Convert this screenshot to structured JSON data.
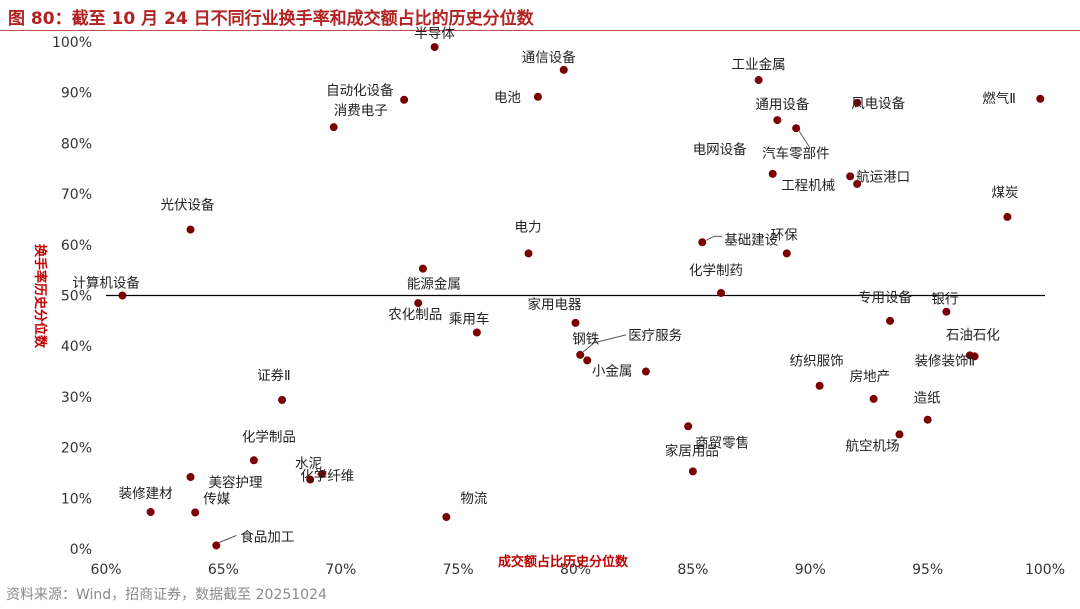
{
  "figure": {
    "title": "图 80：截至 10 月 24 日不同行业换手率和成交额占比的历史分位数",
    "source": "资料来源：Wind，招商证券，数据截至 20251024"
  },
  "colors": {
    "point": "#7b0000",
    "axis_title": "#c00000",
    "title": "#b22222",
    "axis_line": "#000000"
  },
  "chart_data": {
    "type": "scatter",
    "title": "截至 10 月 24 日不同行业换手率和成交额占比的历史分位数",
    "xlabel": "成交额占比历史分位数",
    "ylabel": "换手率历史分位数",
    "xlim": [
      60,
      100
    ],
    "ylim": [
      0,
      100
    ],
    "x_ticks": [
      60,
      65,
      70,
      75,
      80,
      85,
      90,
      95,
      100
    ],
    "y_ticks": [
      0,
      10,
      20,
      30,
      40,
      50,
      60,
      70,
      80,
      90,
      100
    ],
    "tick_suffix": "%",
    "grid": false,
    "points": [
      {
        "name": "半导体",
        "x": 74.0,
        "y": 99.0
      },
      {
        "name": "通信设备",
        "x": 79.5,
        "y": 94.5
      },
      {
        "name": "工业金属",
        "x": 87.8,
        "y": 92.5
      },
      {
        "name": "电池",
        "x": 78.4,
        "y": 89.2
      },
      {
        "name": "自动化设备",
        "x": 72.7,
        "y": 88.6
      },
      {
        "name": "燃气Ⅱ",
        "x": 99.8,
        "y": 88.8
      },
      {
        "name": "风电设备",
        "x": 92.0,
        "y": 88.0
      },
      {
        "name": "通用设备",
        "x": 88.6,
        "y": 84.6
      },
      {
        "name": "汽车零部件",
        "x": 89.4,
        "y": 83.0
      },
      {
        "name": "消费电子",
        "x": 69.7,
        "y": 83.2
      },
      {
        "name": "电网设备",
        "x": 88.4,
        "y": 74.0
      },
      {
        "name": "航运港口",
        "x": 91.7,
        "y": 73.5
      },
      {
        "name": "工程机械",
        "x": 92.0,
        "y": 72.0
      },
      {
        "name": "煤炭",
        "x": 98.4,
        "y": 65.5
      },
      {
        "name": "光伏设备",
        "x": 63.6,
        "y": 63.0
      },
      {
        "name": "基础建设",
        "x": 85.4,
        "y": 60.5
      },
      {
        "name": "电力",
        "x": 78.0,
        "y": 58.3
      },
      {
        "name": "环保",
        "x": 89.0,
        "y": 58.3
      },
      {
        "name": "能源金属",
        "x": 73.5,
        "y": 55.3
      },
      {
        "name": "化学制药",
        "x": 86.2,
        "y": 50.5
      },
      {
        "name": "计算机设备",
        "x": 60.7,
        "y": 50.0
      },
      {
        "name": "农化制品",
        "x": 73.3,
        "y": 48.5
      },
      {
        "name": "银行",
        "x": 95.8,
        "y": 46.8
      },
      {
        "name": "专用设备",
        "x": 93.4,
        "y": 45.0
      },
      {
        "name": "家用电器",
        "x": 80.0,
        "y": 44.6
      },
      {
        "name": "乘用车",
        "x": 75.8,
        "y": 42.7
      },
      {
        "name": "医疗服务",
        "x": 80.2,
        "y": 38.3
      },
      {
        "name": "石油石化",
        "x": 96.8,
        "y": 38.2
      },
      {
        "name": "装修装饰Ⅱ",
        "x": 97.0,
        "y": 38.0
      },
      {
        "name": "钢铁",
        "x": 80.5,
        "y": 37.2
      },
      {
        "name": "小金属",
        "x": 83.0,
        "y": 35.0
      },
      {
        "name": "纺织服饰",
        "x": 90.4,
        "y": 32.2
      },
      {
        "name": "证券Ⅱ",
        "x": 67.5,
        "y": 29.4
      },
      {
        "name": "房地产",
        "x": 92.7,
        "y": 29.6
      },
      {
        "name": "造纸",
        "x": 95.0,
        "y": 25.5
      },
      {
        "name": "商贸零售",
        "x": 84.8,
        "y": 24.2
      },
      {
        "name": "航空机场",
        "x": 93.8,
        "y": 22.6
      },
      {
        "name": "化学制品",
        "x": 66.3,
        "y": 17.5
      },
      {
        "name": "家居用品",
        "x": 85.0,
        "y": 15.3
      },
      {
        "name": "水泥",
        "x": 69.2,
        "y": 14.8
      },
      {
        "name": "美容护理",
        "x": 63.6,
        "y": 14.2
      },
      {
        "name": "化学纤维",
        "x": 68.7,
        "y": 13.7
      },
      {
        "name": "装修建材",
        "x": 61.9,
        "y": 7.3
      },
      {
        "name": "传媒",
        "x": 63.8,
        "y": 7.2
      },
      {
        "name": "物流",
        "x": 74.5,
        "y": 6.3
      },
      {
        "name": "食品加工",
        "x": 64.7,
        "y": 0.7
      }
    ]
  }
}
